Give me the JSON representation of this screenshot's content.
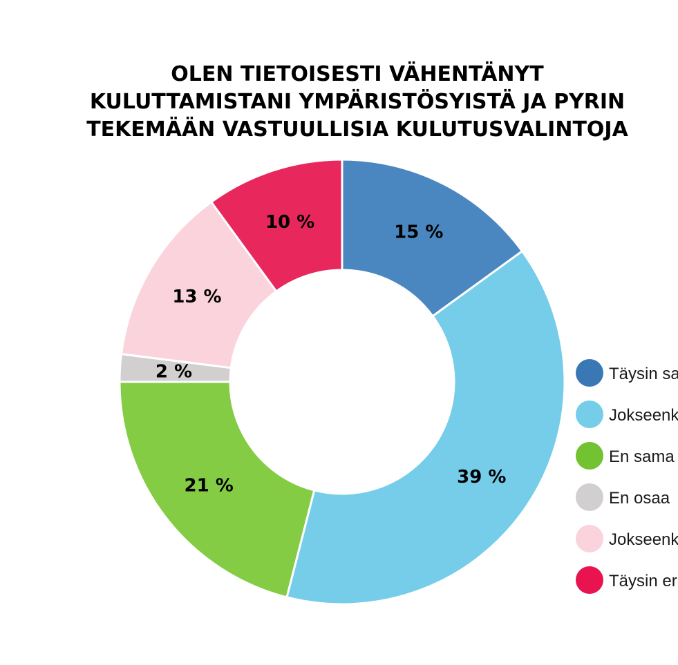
{
  "chart_data": {
    "type": "pie",
    "variant": "donut",
    "title_lines": [
      "OLEN TIETOISESTI VÄHENTÄNYT",
      "KULUTTAMISTANI YMPÄRISTÖSYISTÄ JA PYRIN",
      "TEKEMÄÄN VASTUULLISIA KULUTUSVALINTOJA"
    ],
    "slices": [
      {
        "label": "Täysin sa",
        "value": 15,
        "display": "15 %",
        "color": "#4a87c0",
        "legend_color": "#3a77b5"
      },
      {
        "label": "Jokseenk",
        "value": 39,
        "display": "39 %",
        "color": "#76cde9",
        "legend_color": "#76cde9"
      },
      {
        "label": "En sama",
        "value": 21,
        "display": "21 %",
        "color": "#83cc44",
        "legend_color": "#72c232"
      },
      {
        "label": "En osaa",
        "value": 2,
        "display": "2 %",
        "color": "#d1cfcf",
        "legend_color": "#d1cfcf"
      },
      {
        "label": "Jokseenk",
        "value": 13,
        "display": "13 %",
        "color": "#fad3dd",
        "legend_color": "#fad3dd"
      },
      {
        "label": "Täysin er",
        "value": 10,
        "display": "10 %",
        "color": "#e8275d",
        "legend_color": "#e8134f"
      }
    ],
    "legend_position": "right"
  }
}
